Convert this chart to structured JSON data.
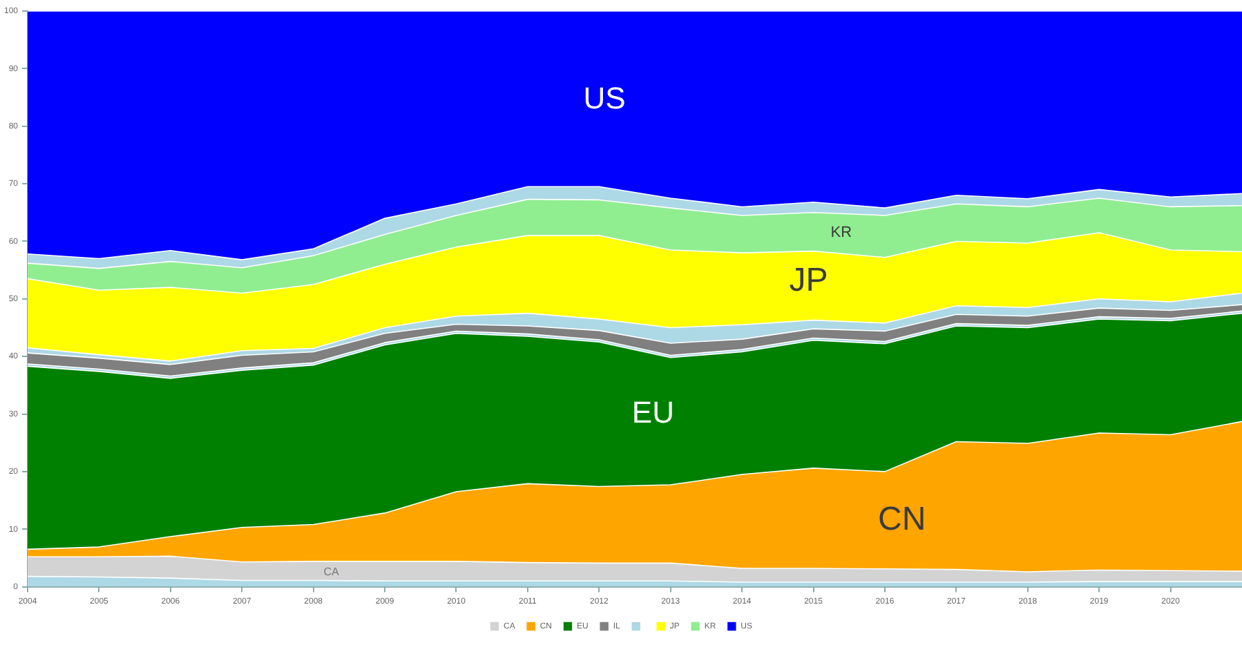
{
  "chart_data": {
    "type": "area",
    "stacked": true,
    "x": [
      2004,
      2005,
      2006,
      2007,
      2008,
      2009,
      2010,
      2011,
      2012,
      2013,
      2014,
      2015,
      2016,
      2017,
      2018,
      2019,
      2020,
      2021
    ],
    "xlim": [
      2004,
      2021
    ],
    "xticks": [
      2004,
      2005,
      2006,
      2007,
      2008,
      2009,
      2010,
      2011,
      2012,
      2013,
      2014,
      2015,
      2016,
      2017,
      2018,
      2019,
      2020
    ],
    "ylim": [
      0,
      100
    ],
    "yticks": [
      0,
      10,
      20,
      30,
      40,
      50,
      60,
      70,
      80,
      90,
      100
    ],
    "grid": false,
    "legend": "bottom",
    "series": [
      {
        "color": "#add8e6",
        "values": [
          1.8,
          1.7,
          1.5,
          1.1,
          1.1,
          1.0,
          1.0,
          1.0,
          1.0,
          1.0,
          0.8,
          0.8,
          0.8,
          0.8,
          0.8,
          0.9,
          0.9,
          0.9
        ]
      },
      {
        "name": "CA",
        "color": "#d3d3d3",
        "values": [
          3.4,
          3.5,
          3.8,
          3.2,
          3.3,
          3.4,
          3.4,
          3.2,
          3.1,
          3.1,
          2.4,
          2.4,
          2.3,
          2.2,
          1.8,
          2.0,
          1.9,
          1.8
        ]
      },
      {
        "name": "CN",
        "color": "#ffa500",
        "values": [
          1.3,
          1.7,
          3.4,
          6.0,
          6.4,
          8.4,
          12.1,
          13.7,
          13.3,
          13.6,
          16.3,
          17.4,
          16.9,
          22.2,
          22.3,
          23.8,
          23.6,
          26.0
        ]
      },
      {
        "name": "EU",
        "color": "#008000",
        "values": [
          31.8,
          30.5,
          27.5,
          27.3,
          27.7,
          29.2,
          27.5,
          25.6,
          25.1,
          22.1,
          21.3,
          22.2,
          22.2,
          20.1,
          20.1,
          19.8,
          19.8,
          18.8
        ]
      },
      {
        "color": "#add8e6",
        "values": [
          0.4,
          0.4,
          0.4,
          0.4,
          0.4,
          0.4,
          0.4,
          0.4,
          0.4,
          0.4,
          0.4,
          0.4,
          0.4,
          0.4,
          0.4,
          0.4,
          0.4,
          0.4
        ]
      },
      {
        "name": "IL",
        "color": "#808080",
        "values": [
          1.9,
          1.9,
          2.0,
          2.2,
          1.9,
          1.6,
          1.2,
          1.4,
          1.6,
          2.1,
          1.8,
          1.6,
          1.8,
          1.6,
          1.6,
          1.5,
          1.4,
          1.1
        ]
      },
      {
        "color": "#add8e6",
        "values": [
          0.9,
          0.6,
          0.6,
          0.8,
          0.6,
          1.0,
          1.4,
          2.2,
          2.0,
          2.7,
          2.5,
          1.5,
          1.4,
          1.5,
          1.5,
          1.6,
          1.5,
          2.0
        ]
      },
      {
        "name": "JP",
        "color": "#ffff00",
        "values": [
          12.0,
          11.2,
          12.8,
          10.0,
          11.1,
          11.0,
          12.0,
          13.5,
          14.5,
          13.5,
          12.5,
          12.0,
          11.4,
          11.2,
          11.2,
          11.5,
          9.0,
          7.2
        ]
      },
      {
        "name": "KR",
        "color": "#90ee90",
        "values": [
          2.7,
          3.8,
          4.5,
          4.4,
          5.0,
          5.2,
          5.5,
          6.3,
          6.2,
          7.3,
          6.5,
          6.7,
          7.3,
          6.5,
          6.3,
          6.0,
          7.5,
          8.0
        ]
      },
      {
        "color": "#add8e6",
        "values": [
          1.6,
          1.7,
          1.9,
          1.4,
          1.2,
          2.8,
          2.0,
          2.2,
          2.3,
          1.7,
          1.5,
          1.8,
          1.3,
          1.5,
          1.4,
          1.5,
          1.7,
          2.1
        ]
      },
      {
        "name": "US",
        "color": "#0000ff",
        "values": [
          42.2,
          43.0,
          41.6,
          43.2,
          41.3,
          36.0,
          33.5,
          30.5,
          30.5,
          32.5,
          34.0,
          33.2,
          34.2,
          32.0,
          32.6,
          31.0,
          32.3,
          31.7
        ]
      }
    ],
    "annotations": [
      "US",
      "KR",
      "JP",
      "EU",
      "CN",
      "CA"
    ]
  }
}
